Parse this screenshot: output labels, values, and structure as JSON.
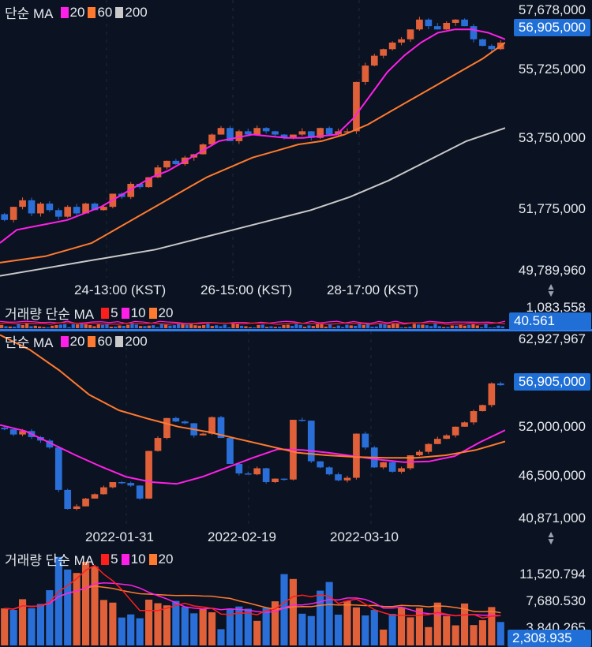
{
  "top": {
    "legend": {
      "label": "단순 MA",
      "ma": [
        {
          "period": "20",
          "color": "#ff1fe8"
        },
        {
          "period": "60",
          "color": "#ff7a2f"
        },
        {
          "period": "200",
          "color": "#c9c9c9"
        }
      ]
    },
    "y_ticks": [
      "57,678,000",
      "55,725,000",
      "53,750,000",
      "51,775,000",
      "49,789,960"
    ],
    "price_tag": "56,905,000",
    "x_ticks": [
      "24-13:00 (KST)",
      "26-15:00 (KST)",
      "28-17:00 (KST)"
    ],
    "volume": {
      "legend_label": "거래량 단순 MA",
      "ma": [
        {
          "period": "5",
          "color": "#ff1e1e"
        },
        {
          "period": "10",
          "color": "#ff1fe8"
        },
        {
          "period": "20",
          "color": "#ff7a2f"
        }
      ],
      "top_tick": "1,083,558",
      "value_tag": "40.561"
    }
  },
  "bottom": {
    "legend": {
      "label": "단순 MA",
      "ma": [
        {
          "period": "20",
          "color": "#ff1fe8"
        },
        {
          "period": "60",
          "color": "#ff7a2f"
        },
        {
          "period": "200",
          "color": "#c9c9c9"
        }
      ]
    },
    "y_ticks": [
      "62,927,967",
      "52,000,000",
      "46,500,000",
      "40,871,000"
    ],
    "price_tag": "56,905,000",
    "x_ticks": [
      "2022-01-31",
      "2022-02-19",
      "2022-03-10"
    ],
    "volume": {
      "legend_label": "거래량 단순 MA",
      "ma": [
        {
          "period": "5",
          "color": "#ff1e1e"
        },
        {
          "period": "10",
          "color": "#ff1fe8"
        },
        {
          "period": "20",
          "color": "#ff7a2f"
        }
      ],
      "y_ticks": [
        "11,520.794",
        "7,680.530",
        "3,840.265"
      ],
      "value_tag": "2,308.935"
    }
  },
  "colors": {
    "up": "#e0603a",
    "down": "#2a6fd8",
    "ma20": "#ff1fe8",
    "ma60": "#ff7a2f",
    "ma200": "#c9c9c9",
    "background": "#0b1221",
    "accent": "#2e7df0"
  },
  "chart_data": [
    {
      "type": "candlestick",
      "title": "",
      "ylim": [
        49789960,
        58100000
      ],
      "x_labels": [
        "24-13:00 (KST)",
        "26-15:00 (KST)",
        "28-17:00 (KST)"
      ],
      "close_series": [
        51500000,
        51900000,
        52100000,
        51700000,
        52000000,
        51800000,
        51600000,
        51900000,
        51700000,
        52000000,
        51800000,
        51900000,
        52300000,
        52200000,
        52600000,
        52500000,
        52800000,
        53100000,
        53300000,
        53200000,
        53400000,
        53500000,
        53800000,
        54100000,
        54300000,
        53900000,
        54200000,
        54100000,
        54300000,
        54200000,
        54100000,
        54000000,
        54100000,
        54200000,
        54000000,
        54300000,
        54100000,
        54200000,
        54200000,
        55700000,
        56200000,
        56500000,
        56700000,
        56900000,
        57000000,
        57300000,
        57600000,
        57400000,
        57300000,
        57500000,
        57600000,
        57400000,
        57000000,
        56800000,
        56700000,
        56900000
      ],
      "series": [
        {
          "name": "MA 20",
          "values": [
            50800000,
            51200000,
            51300000,
            51400000,
            51500000,
            51700000,
            51900000,
            52200000,
            52500000,
            52800000,
            53000000,
            53300000,
            53600000,
            53900000,
            54000000,
            54100000,
            54050000,
            54000000,
            54000000,
            54050000,
            54100000,
            54600000,
            55300000,
            56000000,
            56500000,
            56900000,
            57200000,
            57300000,
            57300000,
            57200000,
            57000000
          ]
        },
        {
          "name": "MA 60",
          "values": [
            50200000,
            50300000,
            50400000,
            50600000,
            50800000,
            51200000,
            51600000,
            52000000,
            52400000,
            52800000,
            53100000,
            53400000,
            53600000,
            53800000,
            53900000,
            54100000,
            54400000,
            54800000,
            55200000,
            55600000,
            56000000,
            56400000,
            56900000
          ]
        },
        {
          "name": "MA 200",
          "values": [
            49800000,
            50000000,
            50200000,
            50400000,
            50600000,
            50900000,
            51200000,
            51500000,
            51800000,
            52200000,
            52700000,
            53300000,
            53900000,
            54300000
          ]
        }
      ]
    },
    {
      "type": "candlestick",
      "title": "",
      "ylim": [
        40871000,
        62927967
      ],
      "x_labels": [
        "2022-01-31",
        "2022-02-19",
        "2022-03-10"
      ],
      "close_series": [
        51800000,
        51200000,
        51600000,
        50900000,
        50500000,
        49700000,
        44800000,
        42600000,
        42900000,
        43800000,
        44300000,
        45100000,
        45700000,
        45600000,
        45300000,
        43800000,
        49300000,
        50800000,
        53100000,
        52700000,
        52500000,
        51100000,
        51300000,
        53200000,
        50800000,
        47800000,
        46700000,
        46600000,
        47300000,
        45700000,
        46100000,
        46000000,
        52900000,
        52800000,
        48100000,
        47400000,
        46600000,
        45900000,
        46200000,
        51300000,
        49700000,
        47400000,
        48000000,
        46900000,
        47300000,
        48800000,
        49200000,
        50100000,
        50700000,
        51100000,
        52100000,
        52600000,
        53900000,
        54600000,
        57100000,
        56900000
      ],
      "series": [
        {
          "name": "MA 20",
          "values": [
            52300000,
            51600000,
            50200000,
            48800000,
            47500000,
            46300000,
            45700000,
            45500000,
            46300000,
            47400000,
            48500000,
            49500000,
            49400000,
            49100000,
            48700000,
            48300000,
            48000000,
            48100000,
            48700000,
            50300000,
            51700000
          ]
        },
        {
          "name": "MA 60",
          "values": [
            62700000,
            61000000,
            58600000,
            55800000,
            54000000,
            53000000,
            52100000,
            51500000,
            50700000,
            49900000,
            49100000,
            48800000,
            48600000,
            48500000,
            48500000,
            48800000,
            49400000,
            50400000
          ]
        }
      ],
      "volume": {
        "ylim": [
          0,
          13400
        ],
        "y_ticks": [
          3840.265,
          7680.53,
          11520.794
        ],
        "last": 2308.935
      }
    }
  ]
}
